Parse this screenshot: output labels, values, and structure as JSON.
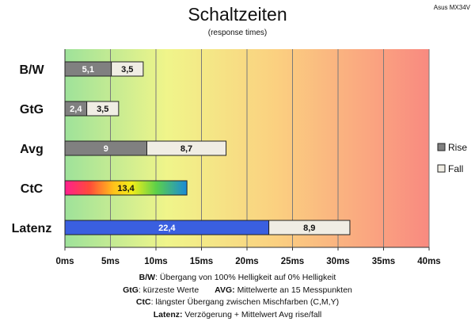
{
  "header": {
    "title": "Schaltzeiten",
    "subtitle": "(response times)",
    "corner_label": "Asus MX34V"
  },
  "chart_data": {
    "type": "bar",
    "orientation": "horizontal",
    "stacked": true,
    "categories": [
      "B/W",
      "GtG",
      "Avg",
      "CtC",
      "Latenz"
    ],
    "series": [
      {
        "name": "Rise",
        "values": [
          5.1,
          2.4,
          9,
          13.4,
          22.4
        ],
        "labels": [
          "5,1",
          "2,4",
          "9",
          "13,4",
          "22,4"
        ]
      },
      {
        "name": "Fall",
        "values": [
          3.5,
          3.5,
          8.7,
          null,
          8.9
        ],
        "labels": [
          "3,5",
          "3,5",
          "8,7",
          "",
          "8,9"
        ]
      }
    ],
    "special_fills": {
      "CtC": "rainbow",
      "Latenz": "blue"
    },
    "xlim": [
      0,
      40
    ],
    "xticks": [
      "0ms",
      "5ms",
      "10ms",
      "15ms",
      "20ms",
      "25ms",
      "30ms",
      "35ms",
      "40ms"
    ],
    "xtick_values": [
      0,
      5,
      10,
      15,
      20,
      25,
      30,
      35,
      40
    ],
    "grid": true,
    "legend_position": "right",
    "background_gradient": [
      "#9ee29a",
      "#f0f58a",
      "#fbd080",
      "#f98a80"
    ],
    "colors": {
      "rise": "#808080",
      "fall": "#f0ede4",
      "latenz": "#3a5fe0",
      "edge": "#222222",
      "grid": "#7a7a7a"
    }
  },
  "notes": {
    "line1_key": "B/W",
    "line1_text": ":  Übergang von 100% Helligkeit auf 0% Helligkeit",
    "line2_key_a": "GtG",
    "line2_text_a": ": kürzeste  Werte",
    "line2_key_b": "AVG:",
    "line2_text_b": " Mittelwerte  an 15 Messpunkten",
    "line3_key": "CtC",
    "line3_text": ": längster Übergang  zwischen Mischfarben  (C,M,Y)",
    "line4_key": "Latenz:",
    "line4_text": " Verzögerung  + Mittelwert  Avg rise/fall"
  }
}
